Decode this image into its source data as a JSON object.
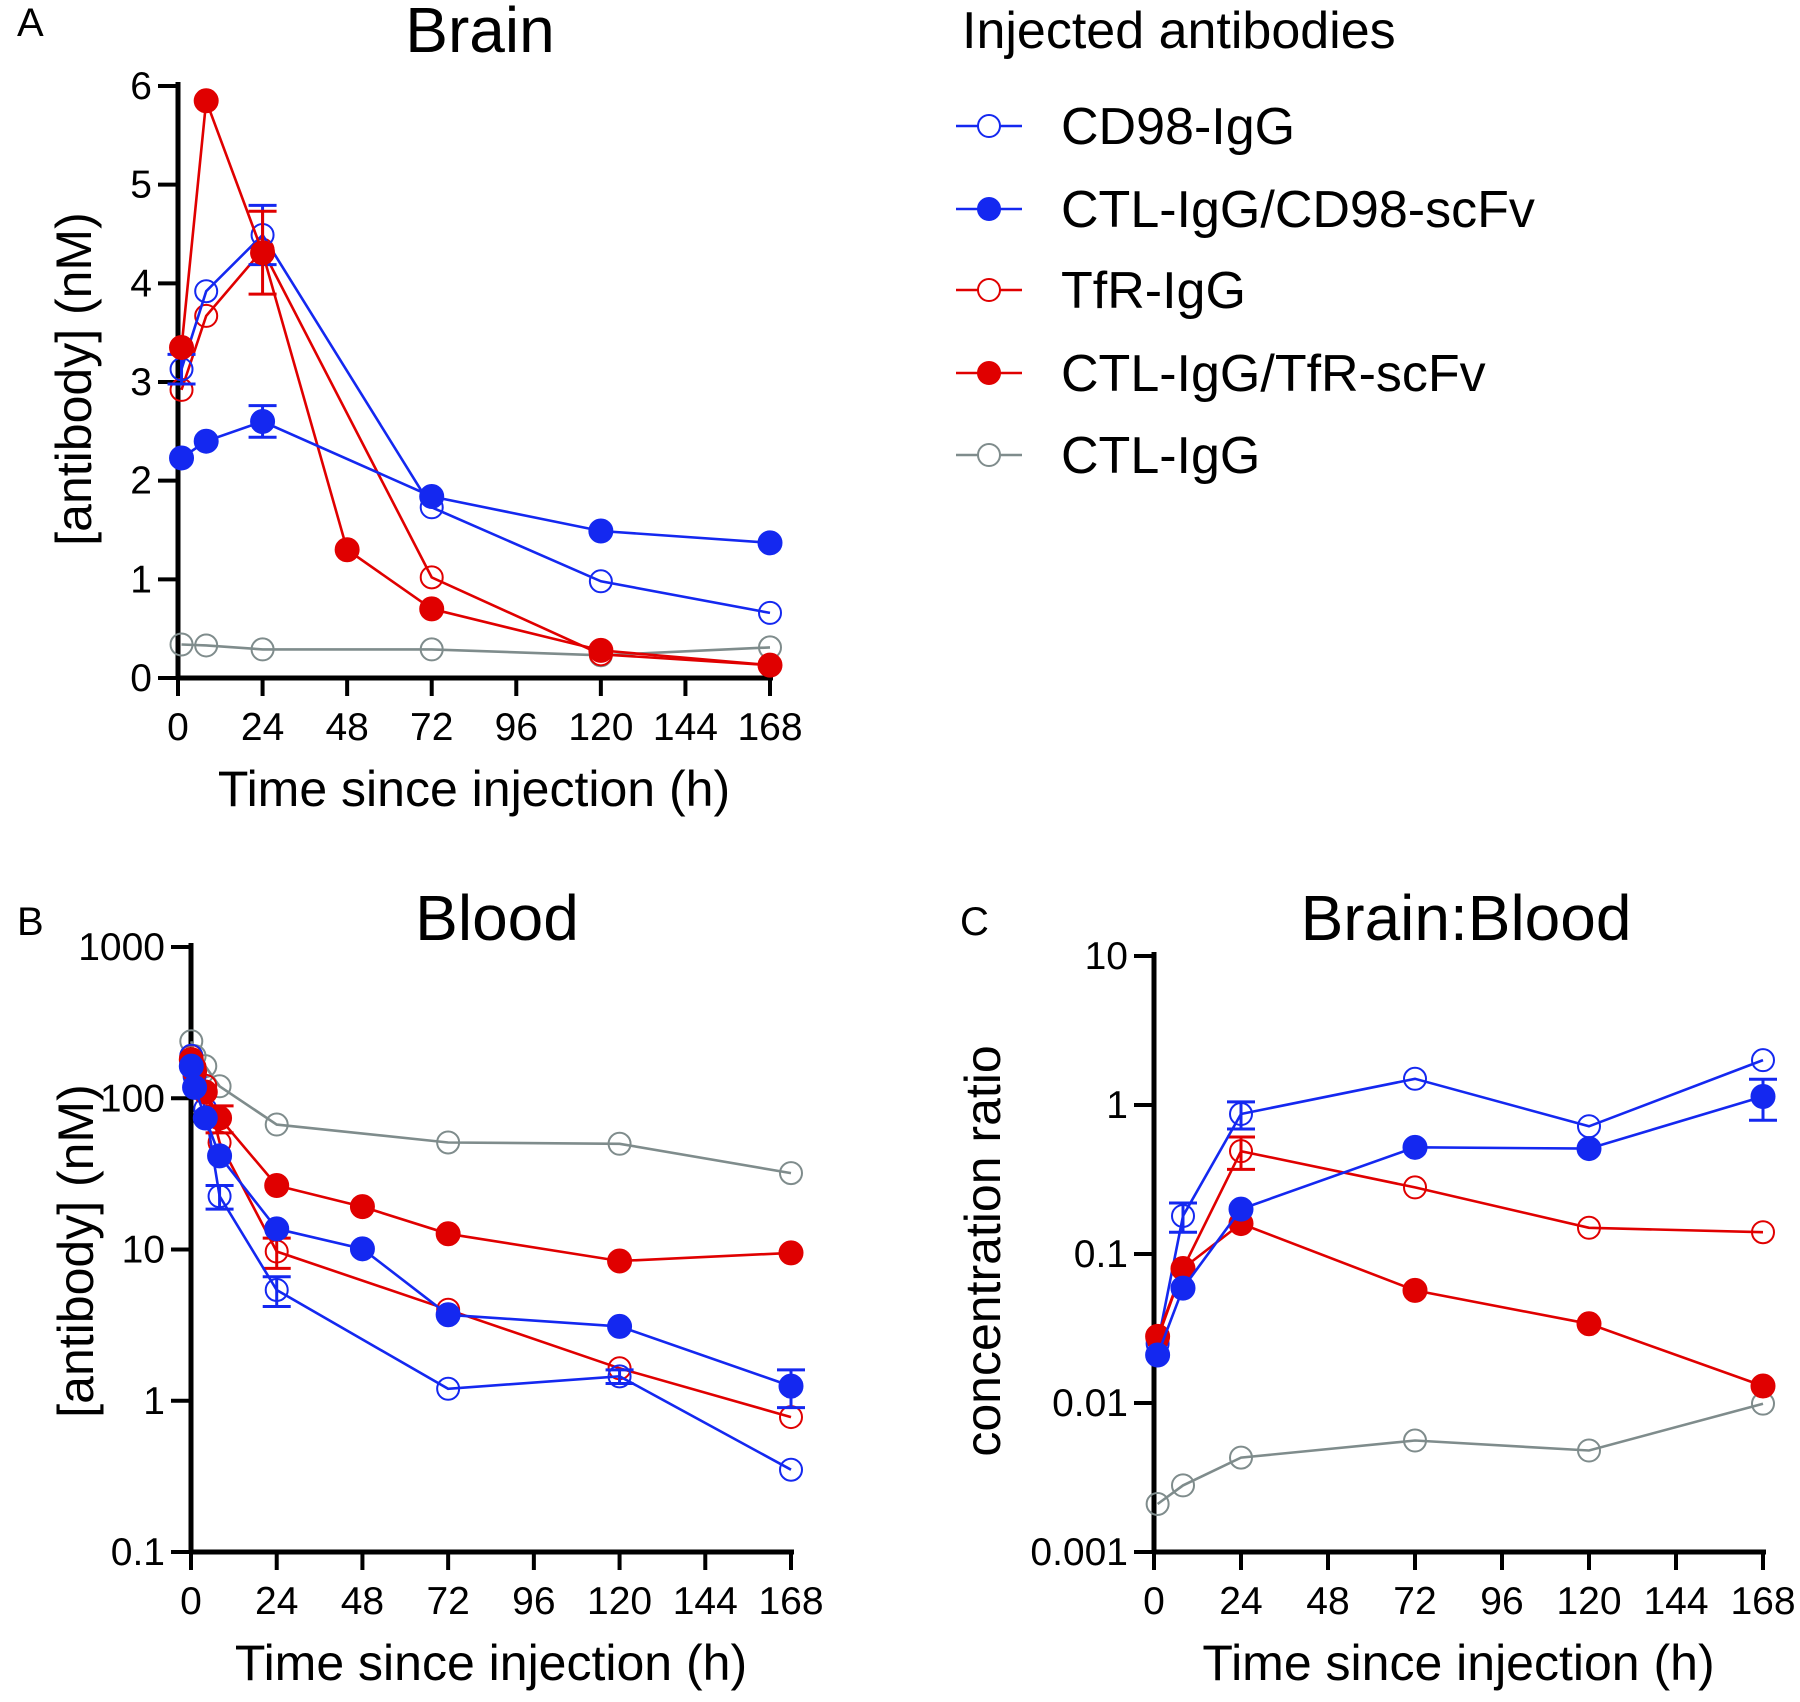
{
  "legend": {
    "title": "Injected antibodies",
    "entries": [
      {
        "name": "CD98-IgG",
        "color": "#1428f0",
        "filled": false
      },
      {
        "name": "CTL-IgG/CD98-scFv",
        "color": "#1428f0",
        "filled": true
      },
      {
        "name": "TfR-IgG",
        "color": "#e00000",
        "filled": false
      },
      {
        "name": "CTL-IgG/TfR-scFv",
        "color": "#e00000",
        "filled": true
      },
      {
        "name": "CTL-IgG",
        "color": "#7f8c8c",
        "filled": false
      }
    ]
  },
  "chart_data": [
    {
      "type": "line",
      "panel_label": "A",
      "title": "Brain",
      "xlabel": "Time since injection (h)",
      "ylabel": "[antibody] (nM)",
      "yscale": "linear",
      "xlim": [
        0,
        168
      ],
      "ylim": [
        0,
        6
      ],
      "xticks": [
        0,
        24,
        48,
        72,
        96,
        120,
        144,
        168
      ],
      "xtick_labels": [
        "0",
        "24",
        "48",
        "72",
        "96",
        "120",
        "144",
        "168"
      ],
      "yticks": [
        0,
        1,
        2,
        3,
        4,
        5,
        6
      ],
      "ytick_labels": [
        "0",
        "1",
        "2",
        "3",
        "4",
        "5",
        "6"
      ],
      "series": [
        {
          "name": "CTL-IgG",
          "x": [
            1,
            8,
            24,
            72,
            120,
            168
          ],
          "y": [
            0.34,
            0.33,
            0.29,
            0.29,
            0.23,
            0.31
          ]
        },
        {
          "name": "TfR-IgG",
          "x": [
            1,
            8,
            24,
            72,
            120,
            168
          ],
          "y": [
            2.92,
            3.67,
            4.34,
            1.02,
            0.24,
            0.13
          ]
        },
        {
          "name": "CD98-IgG",
          "x": [
            1,
            8,
            24,
            72,
            120,
            168
          ],
          "y": [
            3.13,
            3.92,
            4.49,
            1.73,
            0.98,
            0.66
          ],
          "err": [
            0.15,
            0,
            0.3,
            0,
            0,
            0
          ]
        },
        {
          "name": "CTL-IgG/TfR-scFv",
          "x": [
            1,
            8,
            24,
            48,
            72,
            120,
            168
          ],
          "y": [
            3.35,
            5.85,
            4.31,
            1.3,
            0.7,
            0.28,
            0.13
          ],
          "err": [
            0,
            0,
            0.42,
            0,
            0,
            0,
            0
          ]
        },
        {
          "name": "CTL-IgG/CD98-scFv",
          "x": [
            1,
            8,
            24,
            72,
            120,
            168
          ],
          "y": [
            2.23,
            2.4,
            2.6,
            1.84,
            1.49,
            1.37
          ],
          "err": [
            0,
            0,
            0.16,
            0,
            0,
            0
          ]
        }
      ]
    },
    {
      "type": "line",
      "panel_label": "B",
      "title": "Blood",
      "xlabel": "Time since injection (h)",
      "ylabel": "[antibody] (nM)",
      "yscale": "log",
      "xlim": [
        0,
        168
      ],
      "ylim": [
        0.1,
        1000
      ],
      "xticks": [
        0,
        24,
        48,
        72,
        96,
        120,
        144,
        168
      ],
      "xtick_labels": [
        "0",
        "24",
        "48",
        "72",
        "96",
        "120",
        "144",
        "168"
      ],
      "yticks": [
        0.1,
        1,
        10,
        100,
        1000
      ],
      "ytick_labels": [
        "0.1",
        "1",
        "10",
        "100",
        "1000"
      ],
      "series": [
        {
          "name": "CTL-IgG",
          "x": [
            0.083,
            1,
            4,
            8,
            24,
            72,
            120,
            168
          ],
          "y": [
            238,
            190,
            163,
            120,
            67,
            51,
            50,
            32
          ]
        },
        {
          "name": "TfR-IgG",
          "x": [
            0.083,
            1,
            4,
            8,
            24,
            72,
            120,
            168
          ],
          "y": [
            190,
            160,
            121,
            51,
            9.7,
            4.0,
            1.64,
            0.78
          ],
          "err": [
            0,
            0,
            0,
            0,
            2.2,
            0,
            0,
            0
          ]
        },
        {
          "name": "CD98-IgG",
          "x": [
            0.083,
            1,
            4,
            8,
            24,
            72,
            120,
            168
          ],
          "y": [
            191,
            140,
            85,
            22.5,
            5.4,
            1.2,
            1.45,
            0.35
          ],
          "err": [
            0,
            0,
            0,
            4,
            1.2,
            0,
            0.15,
            0
          ]
        },
        {
          "name": "CTL-IgG/TfR-scFv",
          "x": [
            0.083,
            1,
            4,
            8,
            24,
            48,
            72,
            120,
            168
          ],
          "y": [
            180,
            150,
            110,
            74,
            26.5,
            19.2,
            12.7,
            8.4,
            9.5
          ],
          "err": [
            0,
            0,
            0,
            15,
            0,
            0,
            0,
            0,
            0
          ]
        },
        {
          "name": "CTL-IgG/CD98-scFv",
          "x": [
            0.083,
            1,
            4,
            8,
            24,
            48,
            72,
            120,
            168
          ],
          "y": [
            163,
            118,
            74,
            41.6,
            13.7,
            10.1,
            3.7,
            3.1,
            1.25
          ],
          "err": [
            0,
            0,
            0,
            0,
            0,
            0,
            0,
            0,
            0.35
          ]
        }
      ]
    },
    {
      "type": "line",
      "panel_label": "C",
      "title": "Brain:Blood",
      "xlabel": "Time since injection (h)",
      "ylabel": "concentration ratio",
      "yscale": "log",
      "xlim": [
        0,
        168
      ],
      "ylim": [
        0.001,
        10
      ],
      "xticks": [
        0,
        24,
        48,
        72,
        96,
        120,
        144,
        168
      ],
      "xtick_labels": [
        "0",
        "24",
        "48",
        "72",
        "96",
        "120",
        "144",
        "168"
      ],
      "yticks": [
        0.001,
        0.01,
        0.1,
        1,
        10
      ],
      "ytick_labels": [
        "0.001",
        "0.01",
        "0.1",
        "1",
        "10"
      ],
      "series": [
        {
          "name": "CTL-IgG",
          "x": [
            1,
            8,
            24,
            72,
            120,
            168
          ],
          "y": [
            0.0021,
            0.0028,
            0.0043,
            0.0056,
            0.0048,
            0.0099
          ]
        },
        {
          "name": "TfR-IgG",
          "x": [
            1,
            8,
            24,
            72,
            120,
            168
          ],
          "y": [
            0.027,
            0.08,
            0.49,
            0.28,
            0.15,
            0.14
          ],
          "err": [
            0,
            0,
            0.12,
            0,
            0,
            0
          ]
        },
        {
          "name": "CD98-IgG",
          "x": [
            1,
            8,
            24,
            72,
            120,
            168
          ],
          "y": [
            0.025,
            0.18,
            0.87,
            1.5,
            0.72,
            2.0
          ],
          "err": [
            0,
            0.04,
            0.18,
            0,
            0,
            0
          ]
        },
        {
          "name": "CTL-IgG/TfR-scFv",
          "x": [
            1,
            8,
            24,
            72,
            120,
            168
          ],
          "y": [
            0.028,
            0.08,
            0.16,
            0.057,
            0.034,
            0.013
          ]
        },
        {
          "name": "CTL-IgG/CD98-scFv",
          "x": [
            1,
            8,
            24,
            72,
            120,
            168
          ],
          "y": [
            0.021,
            0.059,
            0.2,
            0.52,
            0.51,
            1.14
          ],
          "err": [
            0,
            0,
            0,
            0,
            0,
            0.35
          ]
        }
      ]
    }
  ]
}
